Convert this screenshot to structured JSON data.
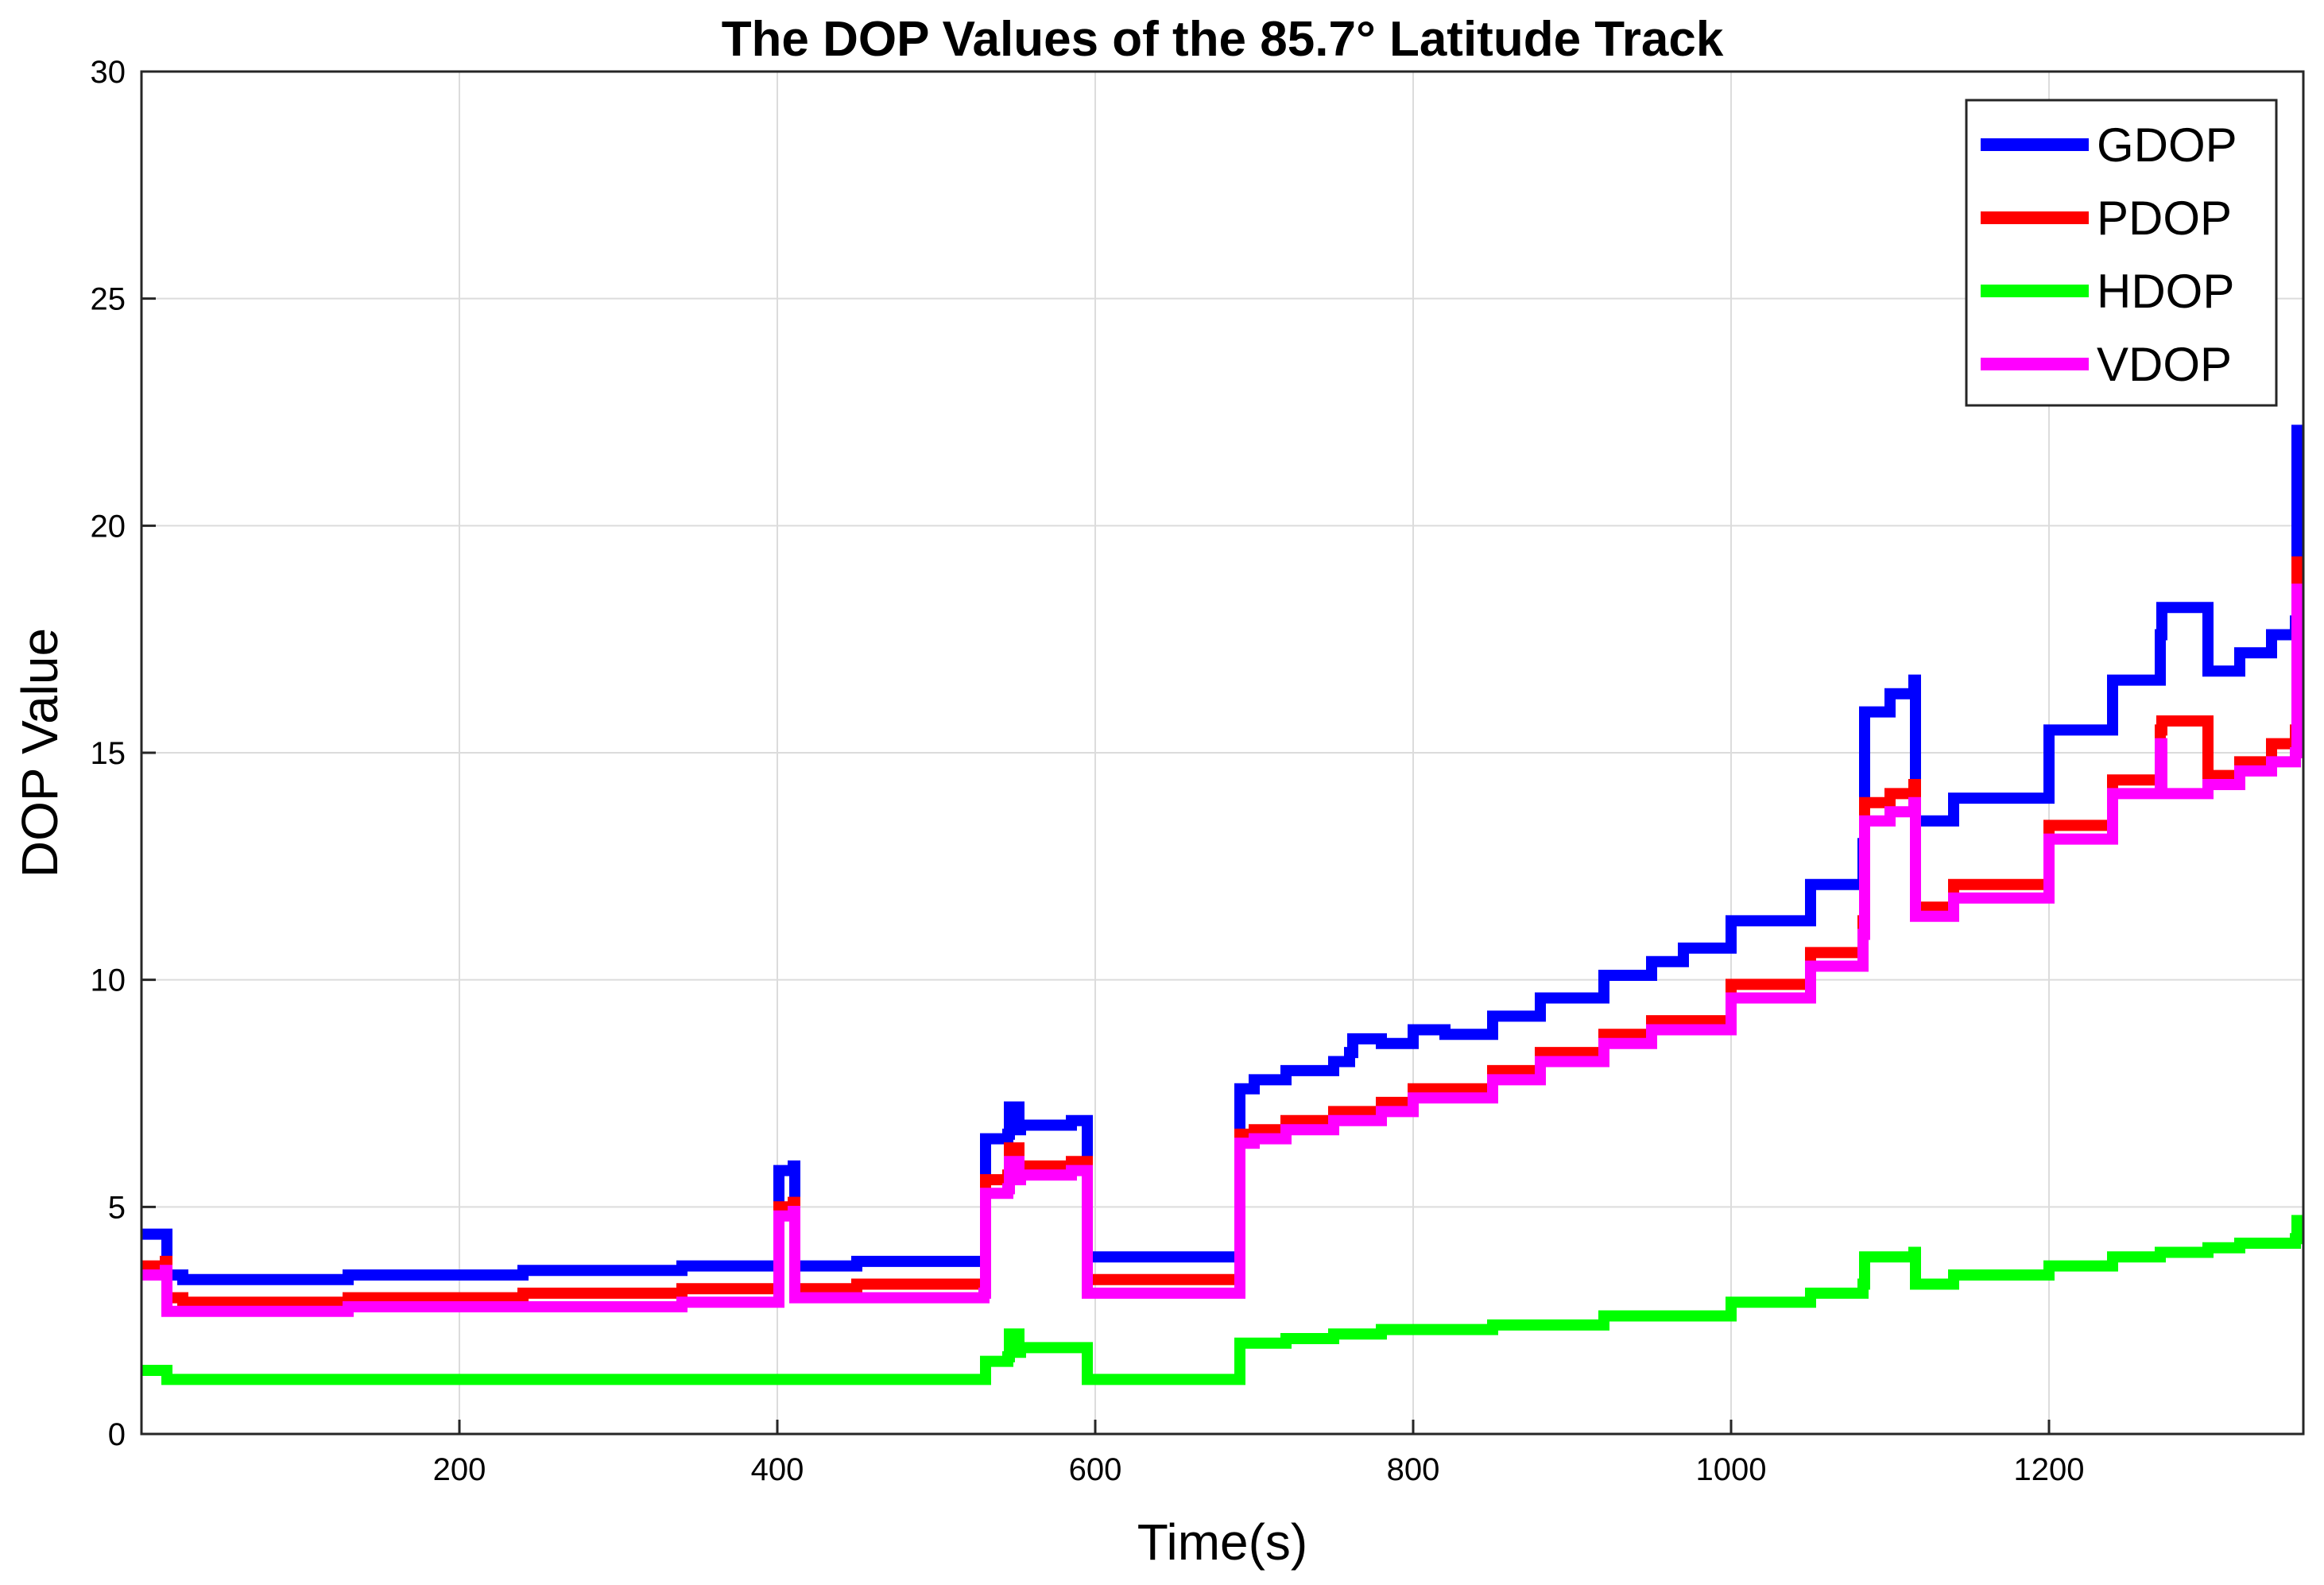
{
  "chart_data": {
    "type": "line",
    "title": "The DOP Values of the 85.7° Latitude Track",
    "xlabel": "Time(s)",
    "ylabel": "DOP Value",
    "xlim": [
      0,
      1360
    ],
    "ylim": [
      0,
      30
    ],
    "xticks": [
      200,
      400,
      600,
      800,
      1000,
      1200
    ],
    "yticks": [
      0,
      5,
      10,
      15,
      20,
      25,
      30
    ],
    "grid": true,
    "legend_position": "top-right",
    "series": [
      {
        "name": "GDOP",
        "color": "#0000ff",
        "x": [
          0,
          15,
          16,
          25,
          26,
          130,
          240,
          340,
          400,
          401,
          410,
          411,
          450,
          530,
          531,
          545,
          546,
          552,
          553,
          585,
          594,
          595,
          690,
          691,
          700,
          720,
          750,
          760,
          762,
          780,
          800,
          820,
          850,
          880,
          920,
          950,
          970,
          1000,
          1050,
          1083,
          1084,
          1100,
          1115,
          1116,
          1140,
          1200,
          1240,
          1270,
          1271,
          1300,
          1320,
          1340,
          1355,
          1356,
          1360
        ],
        "y": [
          4.4,
          4.4,
          3.5,
          3.5,
          3.4,
          3.5,
          3.6,
          3.7,
          3.7,
          5.8,
          5.9,
          3.7,
          3.8,
          3.8,
          6.5,
          6.6,
          7.2,
          6.7,
          6.8,
          6.9,
          6.9,
          3.9,
          3.9,
          7.6,
          7.8,
          8.0,
          8.2,
          8.4,
          8.7,
          8.6,
          8.9,
          8.8,
          9.2,
          9.6,
          10.1,
          10.4,
          10.7,
          11.3,
          12.1,
          13.0,
          15.9,
          16.3,
          16.6,
          13.5,
          14.0,
          15.5,
          16.6,
          17.6,
          18.2,
          16.8,
          17.2,
          17.6,
          17.9,
          22.1,
          22.1
        ]
      },
      {
        "name": "PDOP",
        "color": "#ff0000",
        "x": [
          0,
          15,
          16,
          25,
          26,
          130,
          240,
          340,
          400,
          401,
          410,
          411,
          450,
          530,
          531,
          545,
          546,
          552,
          553,
          585,
          594,
          595,
          690,
          691,
          700,
          720,
          750,
          780,
          800,
          850,
          880,
          920,
          950,
          1000,
          1050,
          1083,
          1084,
          1100,
          1115,
          1116,
          1140,
          1200,
          1240,
          1270,
          1271,
          1300,
          1320,
          1340,
          1355,
          1356,
          1360
        ],
        "y": [
          3.7,
          3.8,
          3.0,
          3.0,
          2.9,
          3.0,
          3.1,
          3.2,
          3.2,
          5.0,
          5.1,
          3.2,
          3.3,
          3.3,
          5.6,
          5.7,
          6.3,
          5.8,
          5.9,
          6.0,
          6.0,
          3.4,
          3.4,
          6.6,
          6.7,
          6.9,
          7.1,
          7.3,
          7.6,
          8.0,
          8.4,
          8.8,
          9.1,
          9.9,
          10.6,
          11.3,
          13.9,
          14.1,
          14.3,
          11.6,
          12.1,
          13.4,
          14.4,
          15.5,
          15.7,
          14.5,
          14.8,
          15.2,
          15.5,
          19.2,
          19.2
        ]
      },
      {
        "name": "HDOP",
        "color": "#00ff00",
        "x": [
          0,
          15,
          16,
          130,
          240,
          340,
          450,
          530,
          531,
          545,
          546,
          552,
          553,
          585,
          594,
          595,
          690,
          691,
          700,
          720,
          750,
          780,
          800,
          850,
          880,
          920,
          950,
          1000,
          1050,
          1083,
          1084,
          1100,
          1115,
          1116,
          1140,
          1200,
          1240,
          1270,
          1300,
          1320,
          1340,
          1355,
          1356,
          1360
        ],
        "y": [
          1.4,
          1.4,
          1.2,
          1.2,
          1.2,
          1.2,
          1.2,
          1.2,
          1.6,
          1.7,
          2.2,
          1.8,
          1.9,
          1.9,
          1.9,
          1.2,
          1.2,
          2.0,
          2.0,
          2.1,
          2.2,
          2.3,
          2.3,
          2.4,
          2.4,
          2.6,
          2.6,
          2.9,
          3.1,
          3.3,
          3.9,
          3.9,
          4.0,
          3.3,
          3.5,
          3.7,
          3.9,
          4.0,
          4.1,
          4.2,
          4.2,
          4.3,
          4.7,
          4.7
        ]
      },
      {
        "name": "VDOP",
        "color": "#ff00ff",
        "x": [
          0,
          15,
          16,
          25,
          26,
          130,
          240,
          340,
          400,
          401,
          410,
          411,
          450,
          530,
          531,
          545,
          546,
          552,
          553,
          585,
          594,
          595,
          690,
          691,
          700,
          720,
          750,
          780,
          800,
          850,
          880,
          920,
          950,
          1000,
          1050,
          1083,
          1084,
          1100,
          1115,
          1116,
          1140,
          1200,
          1240,
          1270,
          1271,
          1300,
          1320,
          1340,
          1355,
          1356,
          1360
        ],
        "y": [
          3.5,
          3.6,
          2.7,
          2.7,
          2.7,
          2.8,
          2.8,
          2.9,
          2.9,
          4.8,
          4.9,
          3.0,
          3.0,
          3.1,
          5.3,
          5.4,
          6.0,
          5.6,
          5.7,
          5.8,
          5.8,
          3.1,
          3.1,
          6.4,
          6.5,
          6.7,
          6.9,
          7.1,
          7.4,
          7.8,
          8.2,
          8.6,
          8.9,
          9.6,
          10.3,
          11.0,
          13.5,
          13.7,
          13.9,
          11.4,
          11.8,
          13.1,
          14.1,
          15.2,
          14.1,
          14.3,
          14.6,
          14.8,
          15.0,
          18.6,
          18.6
        ]
      }
    ]
  }
}
